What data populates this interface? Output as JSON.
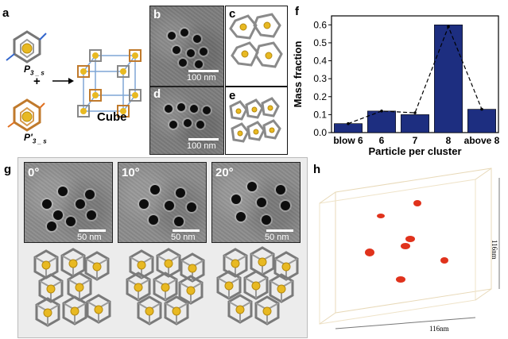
{
  "panels": {
    "a": {
      "label": "a",
      "monomer1_label": "P",
      "monomer1_sub": "3 _ s",
      "plus": "+",
      "monomer2_label": "P'",
      "monomer2_sub": "3 _ s",
      "arrow": "→",
      "product_label": "Cube"
    },
    "b": {
      "label": "b",
      "scale_text": "100 nm"
    },
    "c": {
      "label": "c"
    },
    "d": {
      "label": "d",
      "scale_text": "100 nm"
    },
    "e": {
      "label": "e"
    },
    "f": {
      "label": "f"
    },
    "g": {
      "label": "g",
      "tiles": [
        {
          "angle": "0°",
          "scale_text": "50 nm"
        },
        {
          "angle": "10°",
          "scale_text": "50 nm"
        },
        {
          "angle": "20°",
          "scale_text": "50 nm"
        }
      ]
    },
    "h": {
      "label": "h",
      "axis_x": "116nm",
      "axis_y": "116nm"
    }
  },
  "chart_data": {
    "type": "bar",
    "title": "",
    "xlabel": "Particle per cluster",
    "ylabel": "Mass fraction",
    "categories": [
      "blow 6",
      "6",
      "7",
      "8",
      "above 8"
    ],
    "values": [
      0.05,
      0.12,
      0.1,
      0.6,
      0.13
    ],
    "line_values": [
      0.05,
      0.12,
      0.11,
      0.59,
      0.13
    ],
    "ylim": [
      0,
      0.65
    ],
    "yticks": [
      "0.0",
      "0.1",
      "0.2",
      "0.3",
      "0.4",
      "0.5",
      "0.6"
    ],
    "bar_color": "#1d2e80",
    "line_style": "dashed"
  },
  "colors": {
    "gold": "#e8b922",
    "cage_gray": "#8a8a8a",
    "bronze": "#c07a2c",
    "bond_blue": "#7fa6d6",
    "volume_red": "#e0321c"
  }
}
